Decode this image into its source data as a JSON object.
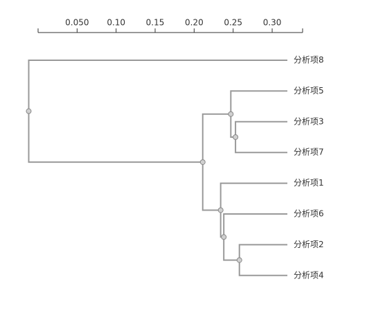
{
  "chart_data": {
    "type": "dendrogram",
    "leaves": [
      "分析项8",
      "分析项5",
      "分析项3",
      "分析项7",
      "分析项1",
      "分析项6",
      "分析项2",
      "分析项4"
    ],
    "merges": [
      {
        "children": [
          2,
          3
        ],
        "height": 0.253
      },
      {
        "children": [
          1,
          8
        ],
        "height": 0.247
      },
      {
        "children": [
          6,
          7
        ],
        "height": 0.258
      },
      {
        "children": [
          5,
          10
        ],
        "height": 0.238
      },
      {
        "children": [
          4,
          11
        ],
        "height": 0.234
      },
      {
        "children": [
          9,
          12
        ],
        "height": 0.211
      },
      {
        "children": [
          0,
          13
        ],
        "height": -0.012
      }
    ],
    "xlim": [
      0,
      0.339
    ],
    "xticks": [
      {
        "value": 0.05,
        "label": "0.050"
      },
      {
        "value": 0.1,
        "label": "0.10"
      },
      0.15,
      {
        "value": 0.2,
        "label": "0.20"
      },
      0.25,
      {
        "value": 0.3,
        "label": "0.30"
      }
    ],
    "color": "#999999"
  }
}
